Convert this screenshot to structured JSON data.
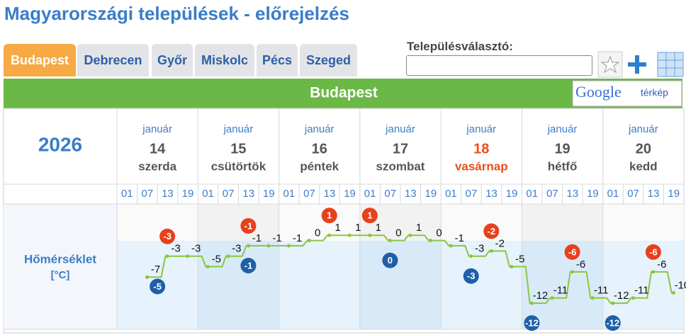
{
  "header": {
    "title": "Magyarországi települések - előrejelzés"
  },
  "tabs": [
    "Budapest",
    "Debrecen",
    "Győr",
    "Miskolc",
    "Pécs",
    "Szeged"
  ],
  "selector": {
    "label": "Településválasztó:"
  },
  "banner": {
    "title": "Budapest",
    "map_button": {
      "brand": "Google",
      "label": "térkép"
    }
  },
  "table": {
    "year": "2026",
    "days": [
      {
        "month": "január",
        "day": "14",
        "weekday": "szerda"
      },
      {
        "month": "január",
        "day": "15",
        "weekday": "csütörtök"
      },
      {
        "month": "január",
        "day": "16",
        "weekday": "péntek"
      },
      {
        "month": "január",
        "day": "17",
        "weekday": "szombat"
      },
      {
        "month": "január",
        "day": "18",
        "weekday": "vasárnap"
      },
      {
        "month": "január",
        "day": "19",
        "weekday": "hétfő"
      },
      {
        "month": "január",
        "day": "20",
        "weekday": "kedd"
      }
    ],
    "hours": [
      "01",
      "07",
      "13",
      "19"
    ],
    "row_label": "Hőmérséklet",
    "row_unit": "[°C]"
  },
  "chart_data": {
    "type": "line",
    "values": [
      -7,
      -3,
      -3,
      -5,
      -3,
      -1,
      -1,
      -1,
      0,
      1,
      1,
      1,
      0,
      1,
      0,
      -1,
      -3,
      -2,
      -5,
      -12,
      -11,
      -6,
      -11,
      -12,
      -11,
      -6,
      -10
    ],
    "max": [
      -3,
      -1,
      1,
      1,
      -2,
      -6,
      -6
    ],
    "min": [
      -5,
      -1,
      null,
      0,
      -3,
      -12,
      -12
    ],
    "color": "#8cc63f",
    "max_color": "#e8401c",
    "min_color": "#1f5fa8",
    "ylim": [
      -17,
      7
    ]
  }
}
